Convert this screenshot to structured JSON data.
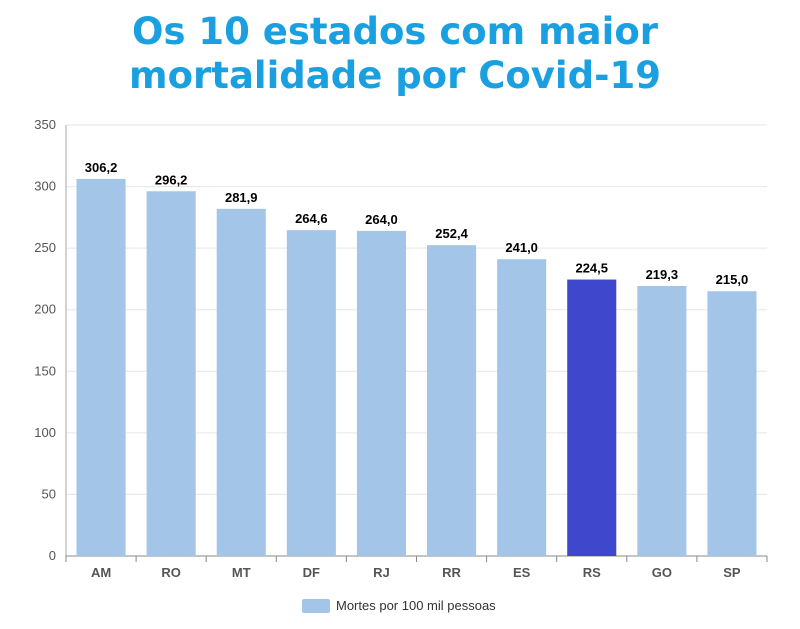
{
  "title_lines": [
    "Os 10 estados com maior",
    "mortalidade por Covid-19"
  ],
  "colors": {
    "bar": "#a2c5e8",
    "highlight": "#3f48cc",
    "title": "#1aa0e0"
  },
  "chart_data": {
    "type": "bar",
    "title": "Os 10 estados com maior mortalidade por Covid-19",
    "categories": [
      "AM",
      "RO",
      "MT",
      "DF",
      "RJ",
      "RR",
      "ES",
      "RS",
      "GO",
      "SP"
    ],
    "series": [
      {
        "name": "Mortes por 100 mil pessoas",
        "values": [
          306.2,
          296.2,
          281.9,
          264.6,
          264.0,
          252.4,
          241.0,
          224.5,
          219.3,
          215.0
        ]
      }
    ],
    "value_labels": [
      "306,2",
      "296,2",
      "281,9",
      "264,6",
      "264,0",
      "252,4",
      "241,0",
      "224,5",
      "219,3",
      "215,0"
    ],
    "highlight_category": "RS",
    "ylim": [
      0,
      350
    ],
    "yticks": [
      0,
      50,
      100,
      150,
      200,
      250,
      300,
      350
    ],
    "grid": true,
    "legend_position": "bottom"
  }
}
